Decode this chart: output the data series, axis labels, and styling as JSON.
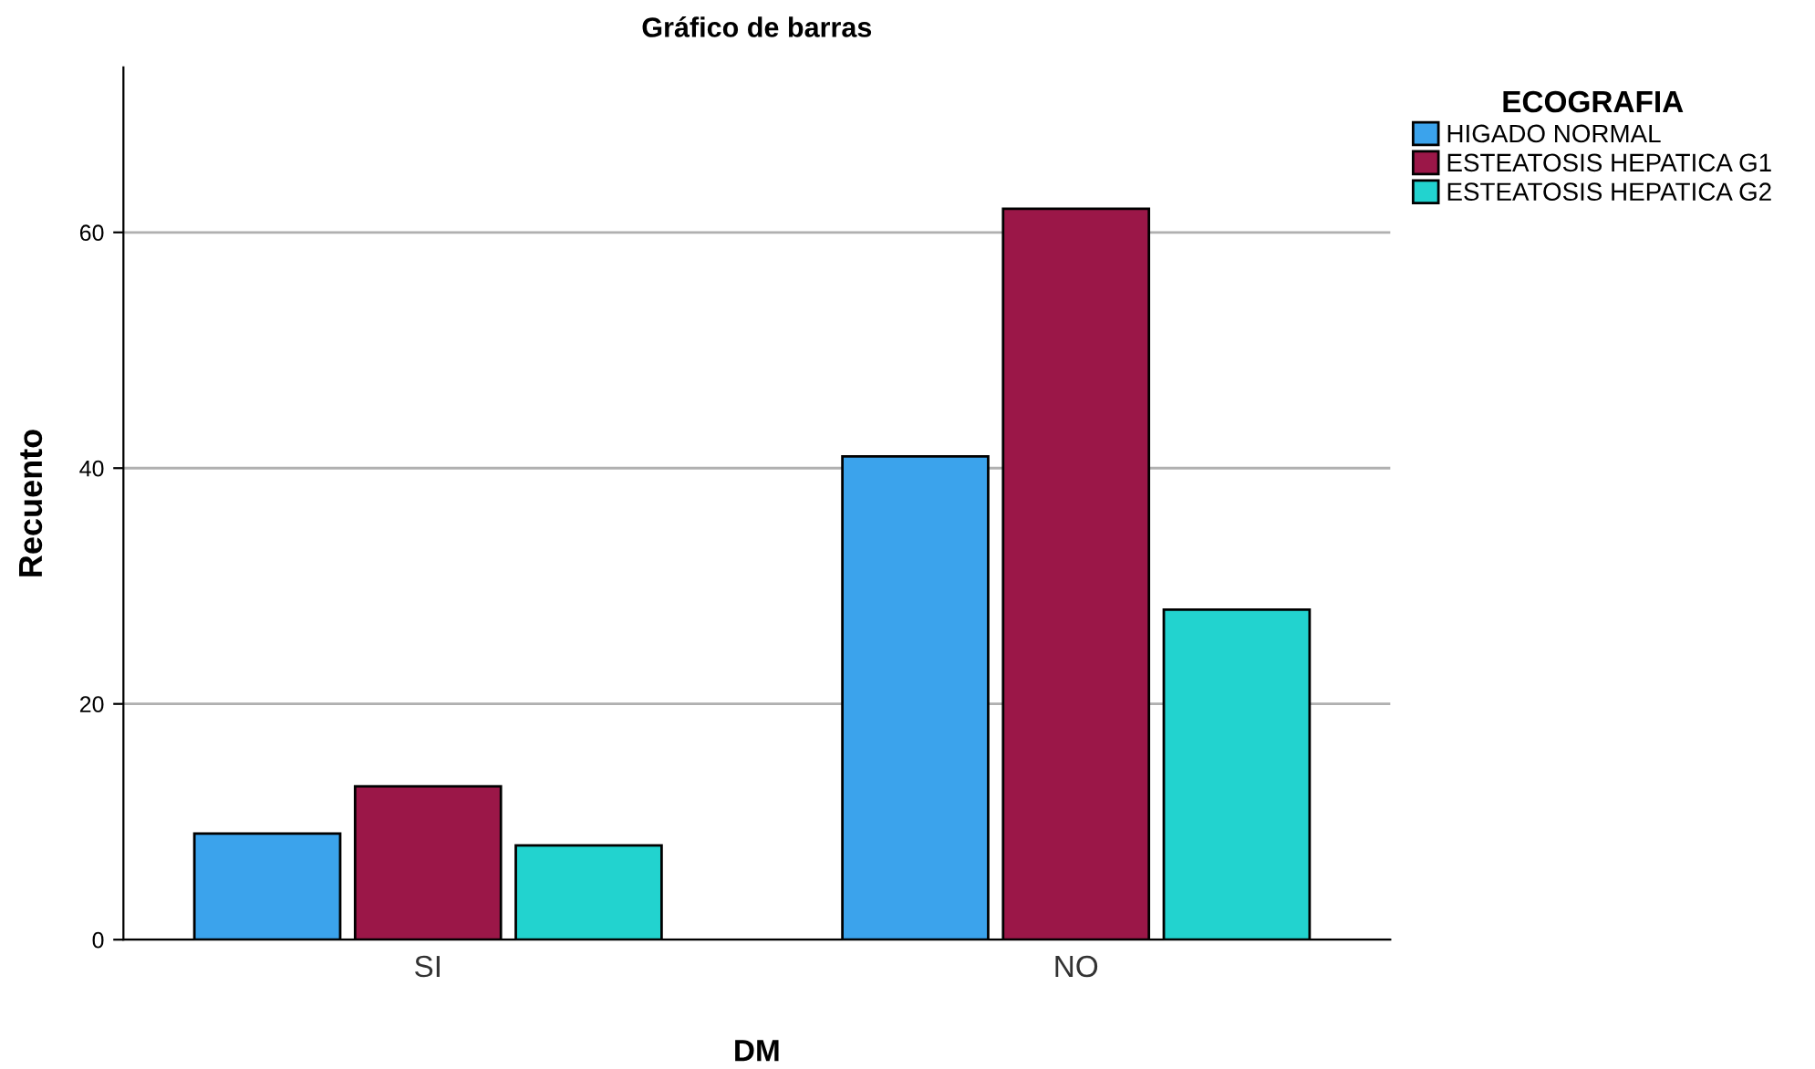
{
  "chart_data": {
    "type": "bar",
    "title": "Gráfico de barras",
    "xlabel": "DM",
    "ylabel": "Recuento",
    "legend_title": "ECOGRAFIA",
    "categories": [
      "SI",
      "NO"
    ],
    "series": [
      {
        "name": "HIGADO NORMAL",
        "color": "#3ba3ec",
        "values": [
          9,
          41
        ]
      },
      {
        "name": "ESTEATOSIS HEPATICA G1",
        "color": "#9b1748",
        "values": [
          13,
          62
        ]
      },
      {
        "name": "ESTEATOSIS HEPATICA G2",
        "color": "#22d3cf",
        "values": [
          8,
          28
        ]
      }
    ],
    "ylim": [
      0,
      74
    ],
    "yticks": [
      0,
      20,
      40,
      60
    ],
    "grid": "y",
    "legend": "top right"
  }
}
